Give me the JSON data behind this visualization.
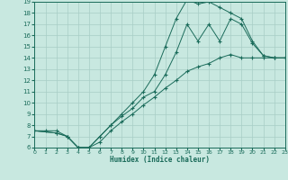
{
  "xlabel": "Humidex (Indice chaleur)",
  "bg_color": "#c8e8e0",
  "grid_color": "#a8cdc6",
  "line_color": "#1a6b5a",
  "xlim": [
    0,
    23
  ],
  "ylim": [
    6,
    19
  ],
  "xticks": [
    0,
    1,
    2,
    3,
    4,
    5,
    6,
    7,
    8,
    9,
    10,
    11,
    12,
    13,
    14,
    15,
    16,
    17,
    18,
    19,
    20,
    21,
    22,
    23
  ],
  "yticks": [
    6,
    7,
    8,
    9,
    10,
    11,
    12,
    13,
    14,
    15,
    16,
    17,
    18,
    19
  ],
  "line1": {
    "x": [
      0,
      1,
      2,
      3,
      4,
      5,
      6,
      7,
      8,
      9,
      10,
      11,
      12,
      13,
      14,
      15,
      16,
      17,
      18,
      19,
      20,
      21,
      22,
      23
    ],
    "y": [
      7.5,
      7.5,
      7.5,
      7.0,
      6.0,
      6.0,
      6.5,
      7.5,
      8.3,
      9.0,
      9.8,
      10.5,
      11.3,
      12.0,
      12.8,
      13.2,
      13.5,
      14.0,
      14.3,
      14.0,
      14.0,
      14.0,
      14.0,
      14.0
    ]
  },
  "line2": {
    "x": [
      0,
      2,
      3,
      4,
      5,
      6,
      7,
      8,
      9,
      10,
      11,
      12,
      13,
      14,
      15,
      16,
      17,
      18,
      19,
      20,
      21,
      22,
      23
    ],
    "y": [
      7.5,
      7.3,
      7.0,
      6.0,
      6.0,
      7.0,
      8.0,
      9.0,
      10.0,
      11.0,
      12.5,
      15.0,
      17.5,
      19.2,
      18.8,
      19.0,
      18.5,
      18.0,
      17.5,
      15.5,
      14.2,
      14.0,
      14.0
    ]
  },
  "line3": {
    "x": [
      0,
      2,
      3,
      4,
      5,
      6,
      7,
      8,
      9,
      10,
      11,
      12,
      13,
      14,
      15,
      16,
      17,
      18,
      19,
      20,
      21,
      22,
      23
    ],
    "y": [
      7.5,
      7.3,
      7.0,
      6.0,
      6.0,
      7.0,
      8.0,
      8.8,
      9.5,
      10.5,
      11.0,
      12.5,
      14.5,
      17.0,
      15.5,
      17.0,
      15.5,
      17.5,
      17.0,
      15.3,
      14.2,
      14.0,
      14.0
    ]
  }
}
